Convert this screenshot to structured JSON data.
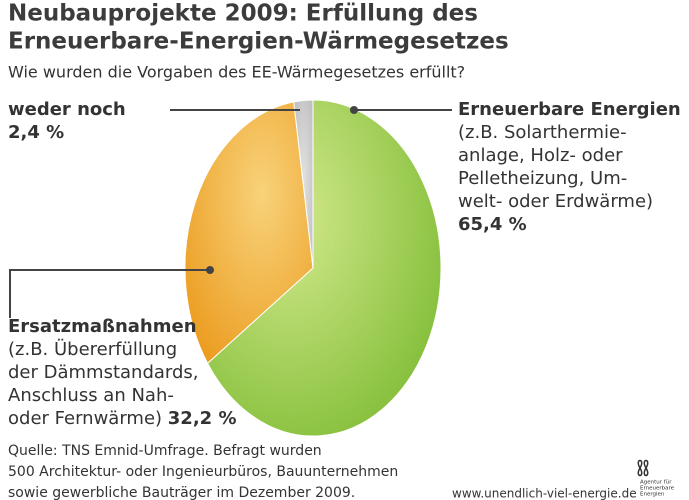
{
  "chart_data": {
    "type": "pie",
    "title": [
      "Neubauprojekte 2009: Erfüllung des",
      "Erneuerbare-Energien-Wärmegesetzes"
    ],
    "subtitle": "Wie wurden die Vorgaben des EE-Wärmegesetzes erfüllt?",
    "categories": [
      "Erneuerbare Energien",
      "Ersatzmaßnahmen",
      "weder noch"
    ],
    "descriptions": [
      [
        "(z.B. Solarthermie-",
        "anlage, Holz- oder",
        "Pelletheizung, Um-",
        "welt- oder Erdwärme)"
      ],
      [
        "(z.B. Übererfüllung",
        "der Dämmstandards,",
        "Anschluss an Nah-",
        "oder Fernwärme)"
      ],
      []
    ],
    "values": [
      65.4,
      32.2,
      2.4
    ],
    "value_labels": [
      "65,4 %",
      "32,2 %",
      "2,4 %"
    ],
    "colors": [
      "#8ec63f",
      "#f0a830",
      "#c8c8c8"
    ],
    "source": [
      "Quelle: TNS Emnid-Umfrage. Befragt wurden",
      "500 Architektur- oder Ingenieurbüros, Bauunternehmen",
      "sowie gewerbliche Bauträger im Dezember 2009."
    ],
    "website": "www.unendlich-viel-energie.de",
    "logo_text": [
      "Agentur für",
      "Erneuerbare",
      "Energien"
    ]
  }
}
